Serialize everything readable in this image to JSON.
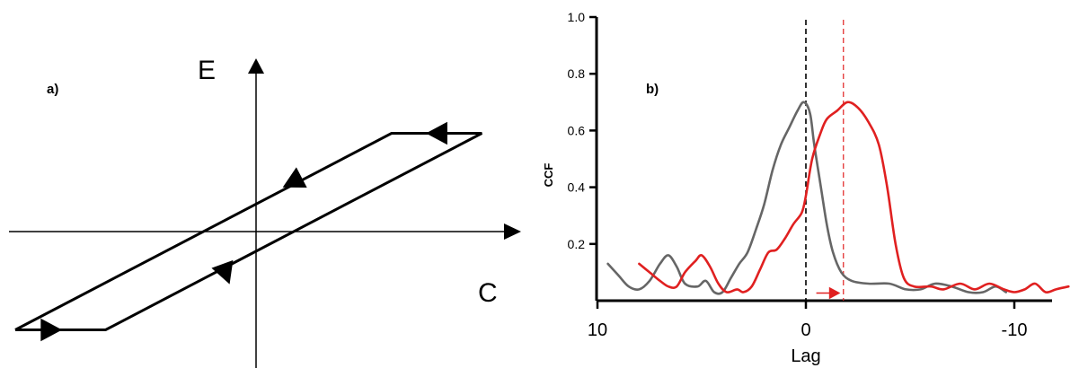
{
  "panel_a": {
    "label": "a)",
    "y_axis_letter": "E",
    "x_axis_letter": "C"
  },
  "panel_b": {
    "label": "b)"
  },
  "chart_data": [
    {
      "type": "line",
      "title": "",
      "xlabel": "C",
      "ylabel": "E",
      "grid": false,
      "legend": "none",
      "series": [
        {
          "points": [
            [
              -8.0,
              -3.0
            ],
            [
              -5.0,
              -3.0
            ],
            [
              7.5,
              3.0
            ],
            [
              4.5,
              3.0
            ],
            [
              -8.0,
              -3.0
            ]
          ],
          "color": "#000000"
        }
      ],
      "arrows": [
        {
          "at": [
            -6.8,
            -3.0
          ],
          "direction": "right"
        },
        {
          "at": [
            -1.0,
            -1.3
          ],
          "direction": "down-right"
        },
        {
          "at": [
            1.2,
            1.5
          ],
          "direction": "up-left"
        },
        {
          "at": [
            6.0,
            3.0
          ],
          "direction": "left"
        }
      ]
    },
    {
      "type": "line",
      "title": "",
      "xlabel": "Lag",
      "ylabel": "CCF",
      "x_reversed": true,
      "xlim": [
        10,
        -10
      ],
      "ylim": [
        0.0,
        1.0
      ],
      "x_ticks": [
        {
          "value": 10,
          "label": "10"
        },
        {
          "value": 0,
          "label": "0"
        },
        {
          "value": -10,
          "label": "-10"
        }
      ],
      "y_ticks": [
        {
          "value": 0.2,
          "label": "0.2"
        },
        {
          "value": 0.4,
          "label": "0.4"
        },
        {
          "value": 0.6,
          "label": "0.6"
        },
        {
          "value": 0.8,
          "label": "0.8"
        },
        {
          "value": 1.0,
          "label": "1.0"
        }
      ],
      "grid": false,
      "legend": "none",
      "series": [
        {
          "color": "#666666",
          "points": [
            [
              9.5,
              0.13
            ],
            [
              9.0,
              0.09
            ],
            [
              8.5,
              0.05
            ],
            [
              8.0,
              0.04
            ],
            [
              7.5,
              0.07
            ],
            [
              7.0,
              0.13
            ],
            [
              6.6,
              0.16
            ],
            [
              6.2,
              0.12
            ],
            [
              5.8,
              0.06
            ],
            [
              5.2,
              0.05
            ],
            [
              4.8,
              0.07
            ],
            [
              4.4,
              0.03
            ],
            [
              4.0,
              0.03
            ],
            [
              3.6,
              0.08
            ],
            [
              3.2,
              0.13
            ],
            [
              2.8,
              0.17
            ],
            [
              2.4,
              0.25
            ],
            [
              2.0,
              0.34
            ],
            [
              1.6,
              0.46
            ],
            [
              1.2,
              0.55
            ],
            [
              0.8,
              0.61
            ],
            [
              0.4,
              0.67
            ],
            [
              0.1,
              0.7
            ],
            [
              -0.2,
              0.66
            ],
            [
              -0.4,
              0.55
            ],
            [
              -0.7,
              0.41
            ],
            [
              -1.0,
              0.27
            ],
            [
              -1.3,
              0.17
            ],
            [
              -1.7,
              0.1
            ],
            [
              -2.2,
              0.07
            ],
            [
              -3.0,
              0.06
            ],
            [
              -4.0,
              0.06
            ],
            [
              -4.8,
              0.04
            ],
            [
              -5.5,
              0.04
            ],
            [
              -6.2,
              0.06
            ],
            [
              -7.0,
              0.05
            ],
            [
              -7.8,
              0.03
            ],
            [
              -8.5,
              0.03
            ],
            [
              -9.1,
              0.05
            ],
            [
              -9.6,
              0.03
            ]
          ]
        },
        {
          "color": "#e02020",
          "points": [
            [
              8.0,
              0.13
            ],
            [
              7.5,
              0.1
            ],
            [
              7.0,
              0.07
            ],
            [
              6.6,
              0.05
            ],
            [
              6.2,
              0.05
            ],
            [
              5.8,
              0.1
            ],
            [
              5.3,
              0.14
            ],
            [
              5.0,
              0.16
            ],
            [
              4.6,
              0.12
            ],
            [
              4.2,
              0.06
            ],
            [
              3.8,
              0.03
            ],
            [
              3.3,
              0.04
            ],
            [
              3.0,
              0.03
            ],
            [
              2.6,
              0.05
            ],
            [
              2.2,
              0.11
            ],
            [
              1.8,
              0.17
            ],
            [
              1.4,
              0.18
            ],
            [
              1.0,
              0.22
            ],
            [
              0.6,
              0.27
            ],
            [
              0.2,
              0.31
            ],
            [
              0.0,
              0.37
            ],
            [
              -0.3,
              0.5
            ],
            [
              -0.7,
              0.59
            ],
            [
              -1.0,
              0.64
            ],
            [
              -1.5,
              0.67
            ],
            [
              -2.0,
              0.7
            ],
            [
              -2.5,
              0.68
            ],
            [
              -3.0,
              0.63
            ],
            [
              -3.5,
              0.55
            ],
            [
              -3.9,
              0.4
            ],
            [
              -4.3,
              0.2
            ],
            [
              -4.7,
              0.08
            ],
            [
              -5.2,
              0.05
            ],
            [
              -6.0,
              0.05
            ],
            [
              -6.6,
              0.04
            ],
            [
              -7.4,
              0.06
            ],
            [
              -8.1,
              0.04
            ],
            [
              -8.8,
              0.06
            ],
            [
              -9.5,
              0.04
            ],
            [
              -10.0,
              0.03
            ],
            [
              -10.5,
              0.04
            ],
            [
              -11.0,
              0.06
            ],
            [
              -11.5,
              0.03
            ],
            [
              -12.0,
              0.04
            ],
            [
              -12.6,
              0.05
            ]
          ]
        }
      ],
      "reference_lines": [
        {
          "x": 0.0,
          "color": "#000000",
          "style": "dashed"
        },
        {
          "x": -1.8,
          "color": "#e02020",
          "style": "dashed"
        }
      ],
      "annotation_arrow": {
        "from_x": -0.5,
        "to_x": -1.6,
        "y": 0.03,
        "color": "#e02020"
      }
    }
  ]
}
